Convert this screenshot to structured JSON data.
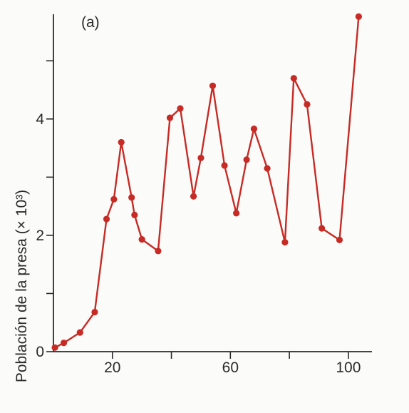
{
  "chart_data": {
    "type": "line",
    "panel_label": "(a)",
    "title": "",
    "xlabel": "",
    "ylabel": "Población de la presa (× 10³)",
    "xlim": [
      0,
      108
    ],
    "ylim": [
      0,
      5.8
    ],
    "x_ticks": [
      20,
      60,
      100
    ],
    "x_minor_ticks": [
      40,
      80
    ],
    "y_ticks": [
      0,
      2,
      4
    ],
    "y_minor_ticks": [
      1,
      3,
      5
    ],
    "grid": false,
    "line_color": "#c62b25",
    "series": [
      {
        "x": [
          0.5,
          3.5,
          9,
          14,
          18,
          20.5,
          23,
          26.5,
          27.5,
          30,
          35.5,
          39.5,
          43,
          47.5,
          50,
          54,
          58,
          62,
          65.5,
          68,
          72.5,
          78.5,
          81.5,
          86,
          91,
          97,
          103.5
        ],
        "y": [
          0.07,
          0.15,
          0.33,
          0.68,
          2.28,
          2.62,
          3.6,
          2.65,
          2.35,
          1.93,
          1.73,
          4.02,
          4.18,
          2.67,
          3.33,
          4.57,
          3.2,
          2.38,
          3.3,
          3.83,
          3.15,
          1.88,
          4.7,
          4.25,
          2.12,
          1.92,
          5.76
        ]
      }
    ]
  }
}
